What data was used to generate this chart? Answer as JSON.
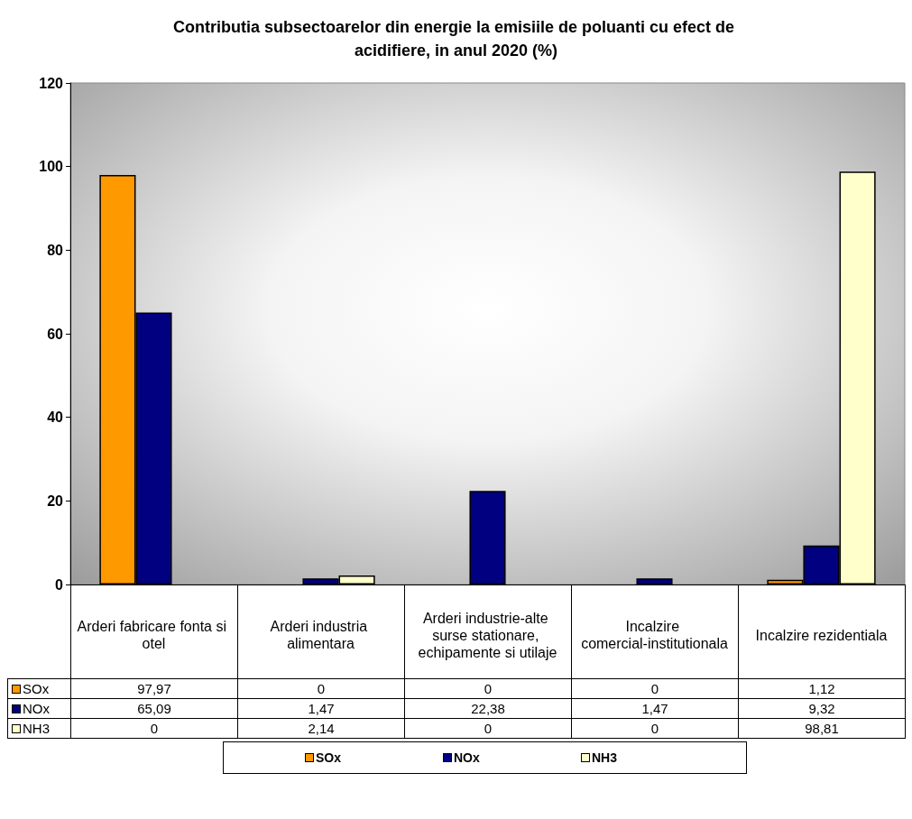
{
  "chart_data": {
    "type": "bar",
    "title": "Contributia subsectoarelor din energie la emisiile de poluanti cu efect de acidifiere, in anul 2020 (%)",
    "categories": [
      "Arderi fabricare fonta si otel",
      "Arderi industria alimentara",
      "Arderi industrie-alte surse stationare, echipamente si utilaje",
      "Incalzire comercial-institutionala",
      "Incalzire rezidentiala"
    ],
    "series": [
      {
        "name": "SOx",
        "color": "#ff9900",
        "values": [
          97.97,
          0,
          0,
          0,
          1.12
        ],
        "value_labels": [
          "97,97",
          "0",
          "0",
          "0",
          "1,12"
        ]
      },
      {
        "name": "NOx",
        "color": "#000080",
        "values": [
          65.09,
          1.47,
          22.38,
          1.47,
          9.32
        ],
        "value_labels": [
          "65,09",
          "1,47",
          "22,38",
          "1,47",
          "9,32"
        ]
      },
      {
        "name": "NH3",
        "color": "#ffffcc",
        "values": [
          0,
          2.14,
          0,
          0,
          98.81
        ],
        "value_labels": [
          "0",
          "2,14",
          "0",
          "0",
          "98,81"
        ]
      }
    ],
    "ylim": [
      0,
      120
    ],
    "yticks": [
      0,
      20,
      40,
      60,
      80,
      100,
      120
    ],
    "grid": false,
    "legend": "bottom"
  }
}
